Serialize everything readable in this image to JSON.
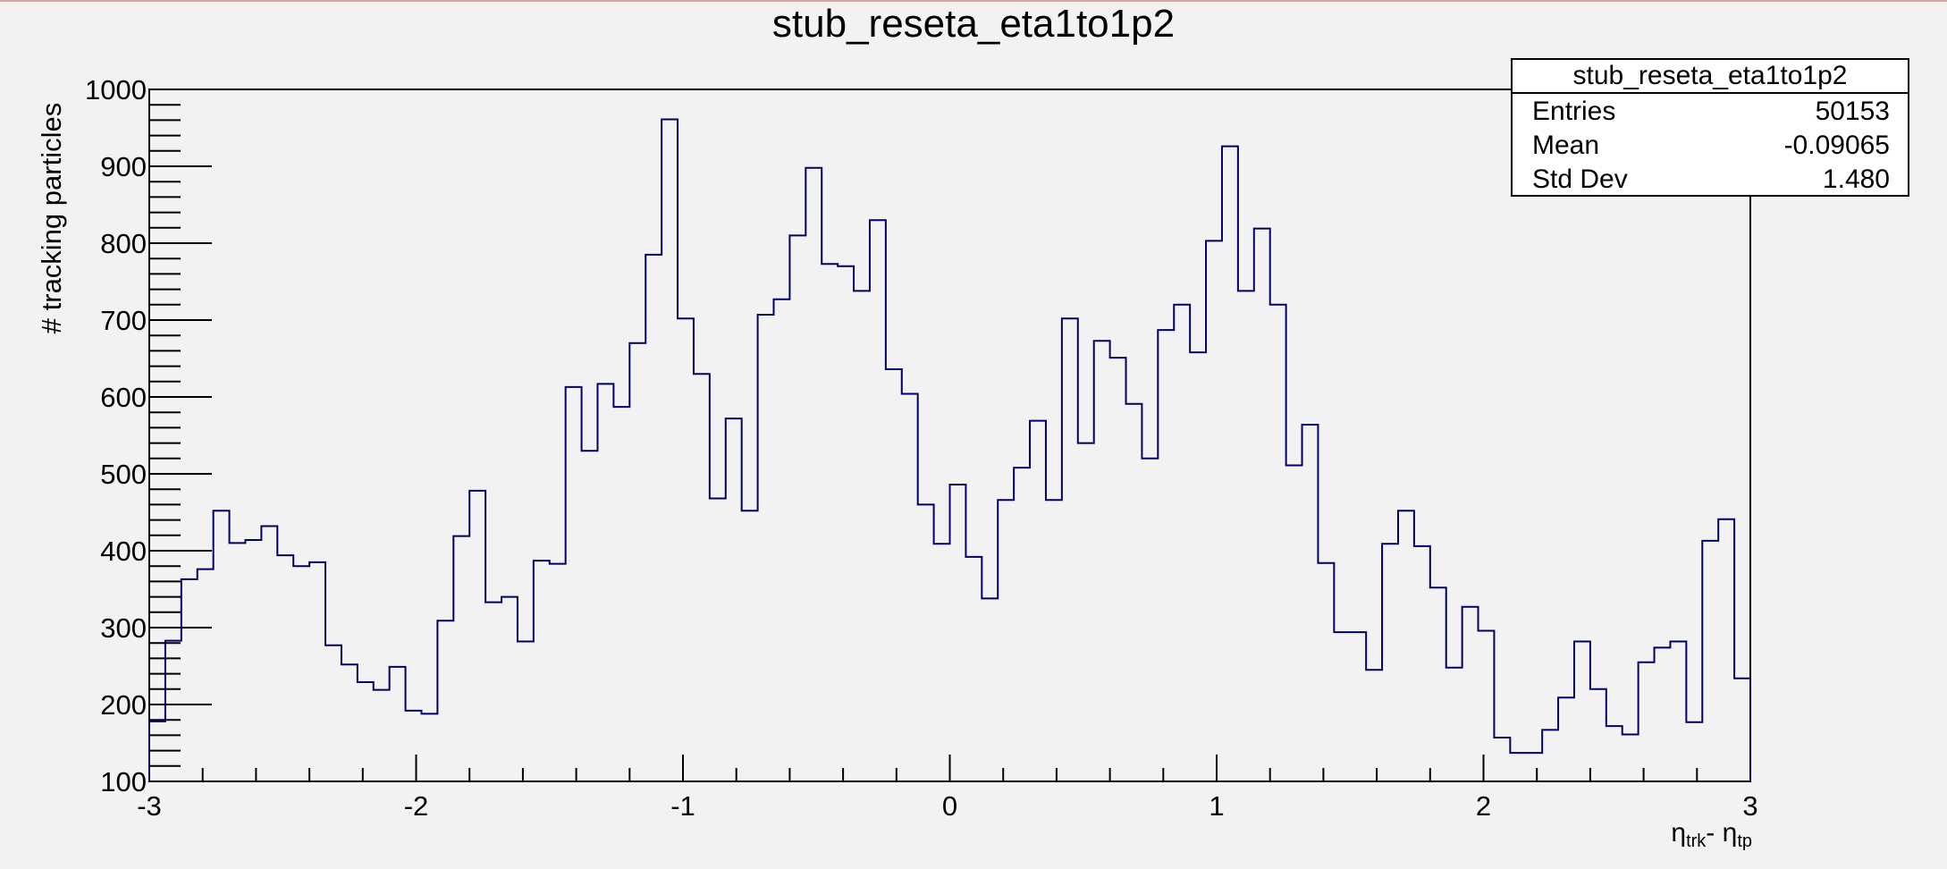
{
  "chart_data": {
    "type": "histogram",
    "title": "stub_reseta_eta1to1p2",
    "xlabel": {
      "symbol": "η",
      "sub1": "trk",
      "sep": "- ",
      "sub2": "tp"
    },
    "ylabel": "# tracking particles",
    "xlim": [
      -3,
      3
    ],
    "ylim": [
      100,
      1000
    ],
    "x_ticks": [
      -3,
      -2,
      -1,
      0,
      1,
      2,
      3
    ],
    "x_tick_labels": [
      "-3",
      "-2",
      "-1",
      "0",
      "1",
      "2",
      "3"
    ],
    "y_ticks": [
      100,
      200,
      300,
      400,
      500,
      600,
      700,
      800,
      900,
      1000
    ],
    "y_tick_labels": [
      "100",
      "200",
      "300",
      "400",
      "500",
      "600",
      "700",
      "800",
      "900",
      "1000"
    ],
    "bin_edges_start": -3,
    "bin_width": 0.06,
    "values": [
      178,
      283,
      363,
      376,
      452,
      410,
      414,
      432,
      394,
      380,
      385,
      277,
      252,
      229,
      219,
      249,
      192,
      188,
      309,
      419,
      478,
      333,
      340,
      282,
      387,
      383,
      613,
      530,
      617,
      587,
      670,
      785,
      961,
      702,
      630,
      468,
      572,
      452,
      707,
      727,
      810,
      898,
      773,
      770,
      738,
      830,
      636,
      604,
      460,
      409,
      486,
      392,
      338,
      466,
      508,
      569,
      466,
      702,
      540,
      673,
      651,
      591,
      520,
      687,
      720,
      658,
      803,
      926,
      738,
      819,
      720,
      511,
      564,
      384,
      294,
      294,
      245,
      409,
      452,
      406,
      352,
      248,
      327,
      296,
      157,
      137,
      137,
      167,
      209,
      282,
      220,
      172,
      161,
      255,
      274,
      282,
      177,
      413,
      441,
      234
    ],
    "line_color": "#000066",
    "frame_color": "#000000",
    "background": "#f2f2f2"
  },
  "stats": {
    "title": "stub_reseta_eta1to1p2",
    "rows": [
      {
        "label": "Entries",
        "value": "50153"
      },
      {
        "label": "Mean",
        "value": "-0.09065"
      },
      {
        "label": "Std Dev",
        "value": "1.480"
      }
    ]
  }
}
